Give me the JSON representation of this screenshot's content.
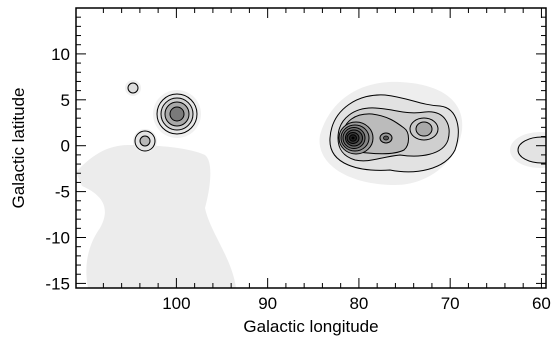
{
  "chart_data": {
    "type": "contour",
    "xlabel": "Galactic longitude",
    "ylabel": "Galactic latitude",
    "xlim": [
      111,
      59.5
    ],
    "ylim": [
      -15.5,
      15
    ],
    "x_axis_reversed": true,
    "x_ticks": [
      100,
      90,
      80,
      70,
      60
    ],
    "y_ticks": [
      10,
      5,
      0,
      -5,
      -10,
      -15
    ],
    "x_tick_labels": [
      "100",
      "90",
      "80",
      "70",
      "60"
    ],
    "y_tick_labels": [
      "10",
      "5",
      "0",
      "-5",
      "-10",
      "-15"
    ],
    "grid": false,
    "colormap": "greyscale filled contours with black contour lines",
    "sources": [
      {
        "l": 104.0,
        "b": 6.3,
        "levels": 1,
        "peak": "low"
      },
      {
        "l": 99.3,
        "b": 3.7,
        "levels": 4,
        "peak": "medium"
      },
      {
        "l": 102.8,
        "b": 0.7,
        "levels": 2,
        "peak": "low"
      },
      {
        "l": 80.0,
        "b": 1.0,
        "levels": 10,
        "peak": "maximum"
      },
      {
        "l": 76.9,
        "b": 1.0,
        "levels": 4,
        "peak": "medium"
      },
      {
        "l": 72.5,
        "b": 2.0,
        "levels": 4,
        "peak": "medium"
      },
      {
        "l": 60.5,
        "b": -0.5,
        "levels": 1,
        "peak": "low"
      }
    ],
    "masked_region": {
      "description": "light grey region without data",
      "l_range": [
        111,
        93
      ],
      "b_range": [
        -15.5,
        0
      ]
    }
  }
}
